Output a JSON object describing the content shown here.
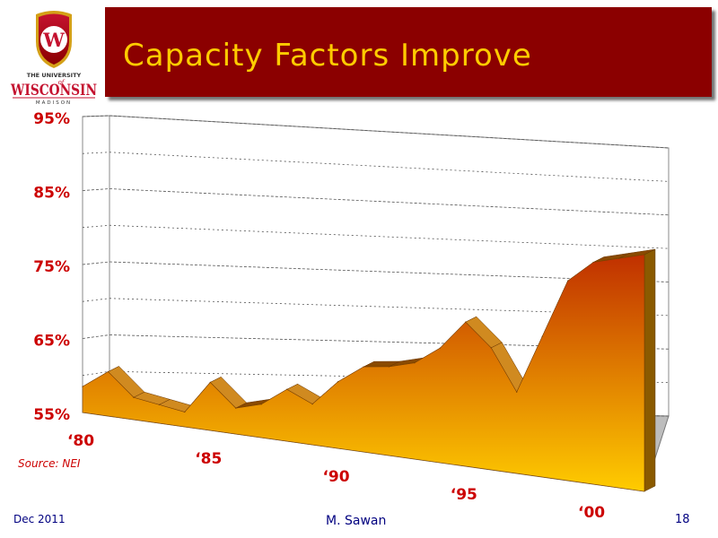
{
  "header": {
    "title": "Capacity Factors Improve",
    "logo": {
      "top_text": "THE UNIVERSITY",
      "of_text": "of",
      "name": "WISCONSIN",
      "city": "MADISON",
      "crest_letter": "W"
    }
  },
  "source": "Source: NEI",
  "footer": {
    "date": "Dec 2011",
    "author": "M. Sawan",
    "page": "18"
  },
  "colors": {
    "title_bg": "#8b0000",
    "title_text": "#ffcc00",
    "axis_label": "#cc0000",
    "footer": "#000080"
  },
  "chart_data": {
    "type": "area",
    "title": "",
    "xlabel": "",
    "ylabel": "",
    "x": [
      1980,
      1981,
      1982,
      1983,
      1984,
      1985,
      1986,
      1987,
      1988,
      1989,
      1990,
      1991,
      1992,
      1993,
      1994,
      1995,
      1996,
      1997,
      1998,
      1999,
      2000,
      2001,
      2002
    ],
    "values": [
      58.5,
      61,
      58,
      57.5,
      57,
      61.5,
      58.5,
      59.5,
      62,
      60.5,
      64,
      66.5,
      67,
      68,
      70.5,
      74.5,
      71.5,
      66,
      74,
      82,
      85,
      86,
      87
    ],
    "ylim": [
      55,
      95
    ],
    "y_ticks": [
      "55%",
      "65%",
      "75%",
      "85%",
      "95%"
    ],
    "y_tick_values": [
      55,
      65,
      75,
      85,
      95
    ],
    "x_ticks": [
      "‘80",
      "‘85",
      "‘90",
      "‘95",
      "‘00"
    ],
    "x_tick_values": [
      1980,
      1985,
      1990,
      1995,
      2000
    ],
    "grid": true,
    "fill_top": "#c03000",
    "fill_bottom": "#ffcc00"
  }
}
